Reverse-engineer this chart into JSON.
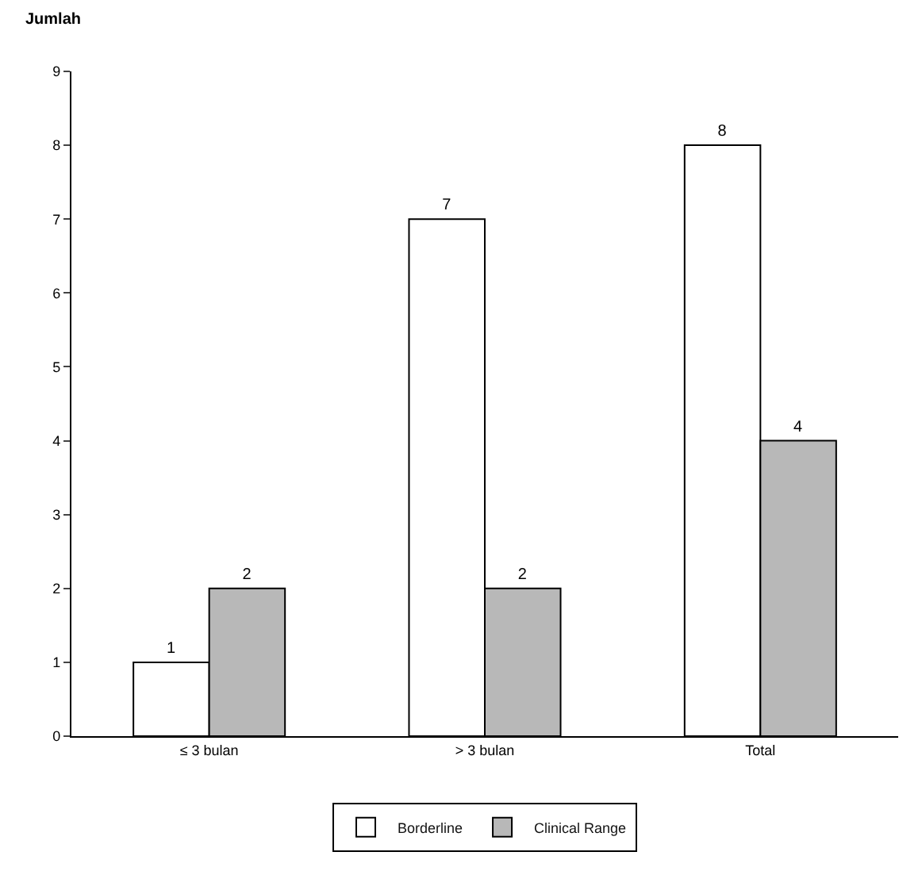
{
  "chart_data": {
    "type": "bar",
    "ylabel": "Jumlah",
    "categories": [
      "≤ 3 bulan",
      "> 3 bulan",
      "Total"
    ],
    "series": [
      {
        "name": "Borderline",
        "color": "#ffffff",
        "values": [
          1,
          7,
          8
        ]
      },
      {
        "name": "Clinical Range",
        "color": "#b8b8b8",
        "values": [
          2,
          2,
          4
        ]
      }
    ],
    "ylim": [
      0,
      9
    ],
    "yticks": [
      0,
      1,
      2,
      3,
      4,
      5,
      6,
      7,
      8,
      9
    ],
    "grid": false,
    "legend": "bottom",
    "data_labels": true
  }
}
